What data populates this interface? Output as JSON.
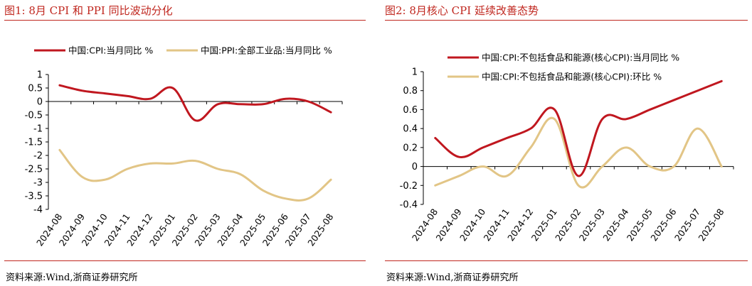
{
  "figures": [
    {
      "title": "图1:   8月 CPI 和 PPI 同比波动分化",
      "source": "资料来源:Wind,浙商证券研究所"
    },
    {
      "title": "图2:   8月核心 CPI 延续改善态势",
      "source": "资料来源:Wind,浙商证券研究所"
    }
  ],
  "chart_data": [
    {
      "type": "line",
      "title": "",
      "xlabel": "",
      "ylabel": "",
      "categories": [
        "2024-08",
        "2024-09",
        "2024-10",
        "2024-11",
        "2024-12",
        "2025-01",
        "2025-02",
        "2025-03",
        "2025-04",
        "2025-05",
        "2025-06",
        "2025-07",
        "2025-08"
      ],
      "ylim": [
        -4,
        1
      ],
      "yticks": [
        1,
        0.5,
        0,
        -0.5,
        -1,
        -1.5,
        -2,
        -2.5,
        -3,
        -3.5,
        -4
      ],
      "ytick_labels": [
        "1",
        "0.5",
        "0",
        "-0.5",
        "-1",
        "-1.5",
        "-2",
        "-2.5",
        "-3",
        "-3.5",
        "-4"
      ],
      "legend_position": "top",
      "series": [
        {
          "name": "中国:CPI:当月同比  %",
          "color": "#c0171f",
          "values": [
            0.6,
            0.4,
            0.3,
            0.2,
            0.1,
            0.5,
            -0.7,
            -0.1,
            -0.1,
            -0.1,
            0.1,
            0.0,
            -0.4
          ]
        },
        {
          "name": "中国:PPI:全部工业品:当月同比  %",
          "color": "#e2c586",
          "values": [
            -1.8,
            -2.8,
            -2.9,
            -2.5,
            -2.3,
            -2.3,
            -2.2,
            -2.5,
            -2.7,
            -3.3,
            -3.6,
            -3.6,
            -2.9
          ]
        }
      ]
    },
    {
      "type": "line",
      "title": "",
      "xlabel": "",
      "ylabel": "",
      "categories": [
        "2024-08",
        "2024-09",
        "2024-10",
        "2024-11",
        "2024-12",
        "2025-01",
        "2025-02",
        "2025-03",
        "2025-04",
        "2025-05",
        "2025-06",
        "2025-07",
        "2025-08"
      ],
      "ylim": [
        -0.4,
        1
      ],
      "yticks": [
        1,
        0.8,
        0.6,
        0.4,
        0.2,
        0,
        -0.2,
        -0.4
      ],
      "ytick_labels": [
        "1",
        "0.8",
        "0.6",
        "0.4",
        "0.2",
        "0",
        "-0.2",
        "-0.4"
      ],
      "legend_position": "top",
      "series": [
        {
          "name": "中国:CPI:不包括食品和能源(核心CPI):当月同比  %",
          "color": "#c0171f",
          "values": [
            0.3,
            0.1,
            0.2,
            0.3,
            0.4,
            0.6,
            -0.1,
            0.5,
            0.5,
            0.6,
            0.7,
            0.8,
            0.9
          ]
        },
        {
          "name": "中国:CPI:不包括食品和能源(核心CPI):环比  %",
          "color": "#e2c586",
          "values": [
            -0.2,
            -0.1,
            0.0,
            -0.1,
            0.2,
            0.5,
            -0.2,
            0.0,
            0.2,
            0.0,
            0.0,
            0.4,
            0.0
          ]
        }
      ]
    }
  ]
}
